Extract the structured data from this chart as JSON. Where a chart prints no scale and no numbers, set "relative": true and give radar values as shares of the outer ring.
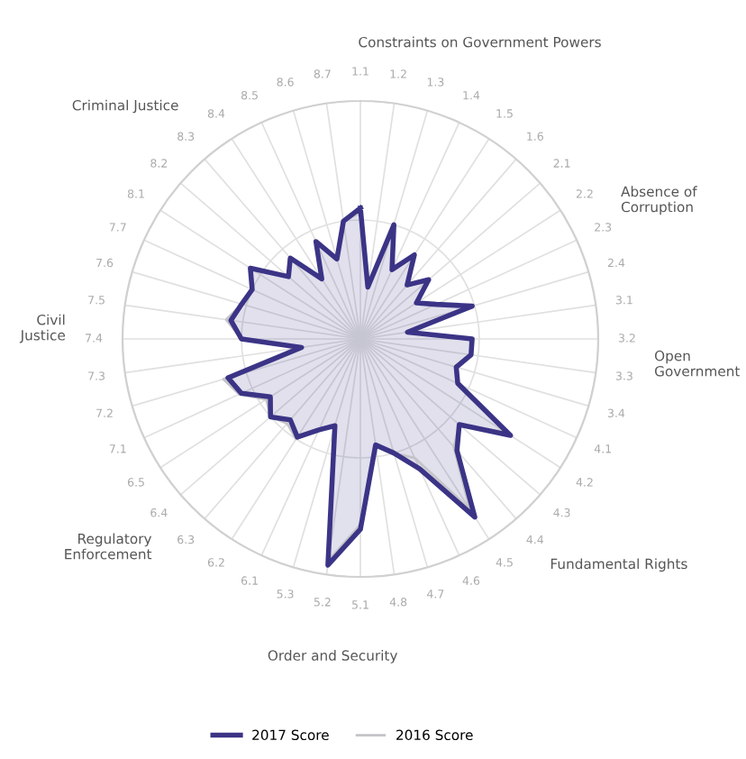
{
  "chart_data": {
    "type": "radar",
    "relative": true,
    "grid": true,
    "legend": "bottom",
    "marker": "none",
    "categories": [
      "1.1",
      "1.2",
      "1.3",
      "1.4",
      "1.5",
      "1.6",
      "2.1",
      "2.2",
      "2.3",
      "2.4",
      "3.1",
      "3.2",
      "3.3",
      "3.4",
      "4.1",
      "4.2",
      "4.3",
      "4.4",
      "4.5",
      "4.6",
      "4.7",
      "4.8",
      "5.1",
      "5.2",
      "5.3",
      "6.1",
      "6.2",
      "6.3",
      "6.4",
      "6.5",
      "7.1",
      "7.2",
      "7.3",
      "7.4",
      "7.5",
      "7.6",
      "7.7",
      "8.1",
      "8.2",
      "8.3",
      "8.4",
      "8.5",
      "8.6",
      "8.7"
    ],
    "series": [
      {
        "name": "2017 Score",
        "color": "#3b3486",
        "values": [
          0.55,
          0.22,
          0.5,
          0.32,
          0.42,
          0.3,
          0.38,
          0.28,
          0.35,
          0.49,
          0.2,
          0.47,
          0.47,
          0.42,
          0.45,
          0.75,
          0.55,
          0.62,
          0.89,
          0.6,
          0.5,
          0.45,
          0.8,
          0.96,
          0.38,
          0.42,
          0.49,
          0.45,
          0.5,
          0.45,
          0.55,
          0.58,
          0.25,
          0.5,
          0.55,
          0.52,
          0.5,
          0.55,
          0.4,
          0.45,
          0.3,
          0.45,
          0.35,
          0.5
        ]
      },
      {
        "name": "2016 Score",
        "color": "#c4c4c8",
        "values": [
          0.53,
          0.22,
          0.48,
          0.33,
          0.42,
          0.3,
          0.37,
          0.28,
          0.35,
          0.47,
          0.2,
          0.46,
          0.47,
          0.42,
          0.45,
          0.72,
          0.55,
          0.6,
          0.85,
          0.55,
          0.5,
          0.45,
          0.78,
          0.94,
          0.38,
          0.42,
          0.5,
          0.47,
          0.5,
          0.47,
          0.56,
          0.6,
          0.25,
          0.5,
          0.57,
          0.52,
          0.5,
          0.55,
          0.4,
          0.45,
          0.3,
          0.45,
          0.35,
          0.5
        ]
      }
    ],
    "annotations": [
      "Constraints on Government Powers",
      "Absence of Corruption",
      "Open Government",
      "Fundamental Rights",
      "Order and Security",
      "Regulatory Enforcement",
      "Civil Justice",
      "Criminal Justice"
    ]
  }
}
